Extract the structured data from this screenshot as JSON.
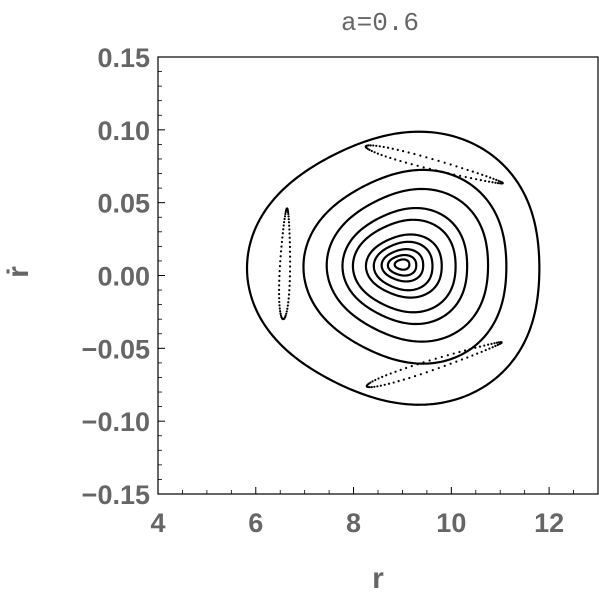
{
  "chart_data": {
    "type": "scatter",
    "title": "a=0.6",
    "xlabel": "r",
    "ylabel": "ṙ",
    "xlim": [
      4,
      13
    ],
    "ylim": [
      -0.15,
      0.15
    ],
    "xticks": [
      4,
      6,
      8,
      10,
      12
    ],
    "xtick_labels": [
      "4",
      "6",
      "8",
      "10",
      "12"
    ],
    "yticks": [
      -0.15,
      -0.1,
      -0.05,
      0.0,
      0.05,
      0.1,
      0.15
    ],
    "ytick_labels": [
      "−0.15",
      "−0.10",
      "−0.05",
      "0.00",
      "0.05",
      "0.10",
      "0.15"
    ],
    "grid": false,
    "legend": "none",
    "colors": {
      "marks": "#000000",
      "frame": "#000000",
      "text": "#666666"
    },
    "series": [
      {
        "style": "closed-curve",
        "orbits": [
          {
            "rmin": 6.0,
            "rmax": 11.98,
            "zmin": -0.088,
            "zmax": 0.098
          },
          {
            "rmin": 7.1,
            "rmax": 11.25,
            "zmin": -0.06,
            "zmax": 0.072
          },
          {
            "rmin": 7.55,
            "rmax": 10.85,
            "zmin": -0.045,
            "zmax": 0.059
          },
          {
            "rmin": 7.85,
            "rmax": 10.4,
            "zmin": -0.033,
            "zmax": 0.046
          },
          {
            "rmin": 8.05,
            "rmax": 10.15,
            "zmin": -0.025,
            "zmax": 0.038
          },
          {
            "rmin": 8.3,
            "rmax": 9.85,
            "zmin": -0.015,
            "zmax": 0.028
          },
          {
            "rmin": 8.45,
            "rmax": 9.65,
            "zmin": -0.01,
            "zmax": 0.023
          },
          {
            "rmin": 8.6,
            "rmax": 9.45,
            "zmin": -0.004,
            "zmax": 0.018
          },
          {
            "rmin": 8.72,
            "rmax": 9.3,
            "zmin": 0.0,
            "zmax": 0.014
          },
          {
            "rmin": 8.85,
            "rmax": 9.15,
            "zmin": 0.004,
            "zmax": 0.011
          }
        ]
      },
      {
        "style": "dotted-islands",
        "islands": [
          {
            "r": 6.6,
            "z": 0.008,
            "half_length_r": 0.25,
            "half_length_z": 0.038,
            "half_width": 0.004,
            "angle_deg": 88
          },
          {
            "r": 9.65,
            "z": 0.076,
            "half_length_r": 1.45,
            "half_length_z": 0.018,
            "half_width": 0.004,
            "angle_deg": -15
          },
          {
            "r": 9.65,
            "z": -0.061,
            "half_length_r": 1.45,
            "half_length_z": 0.018,
            "half_width": 0.004,
            "angle_deg": 18
          }
        ]
      }
    ]
  }
}
